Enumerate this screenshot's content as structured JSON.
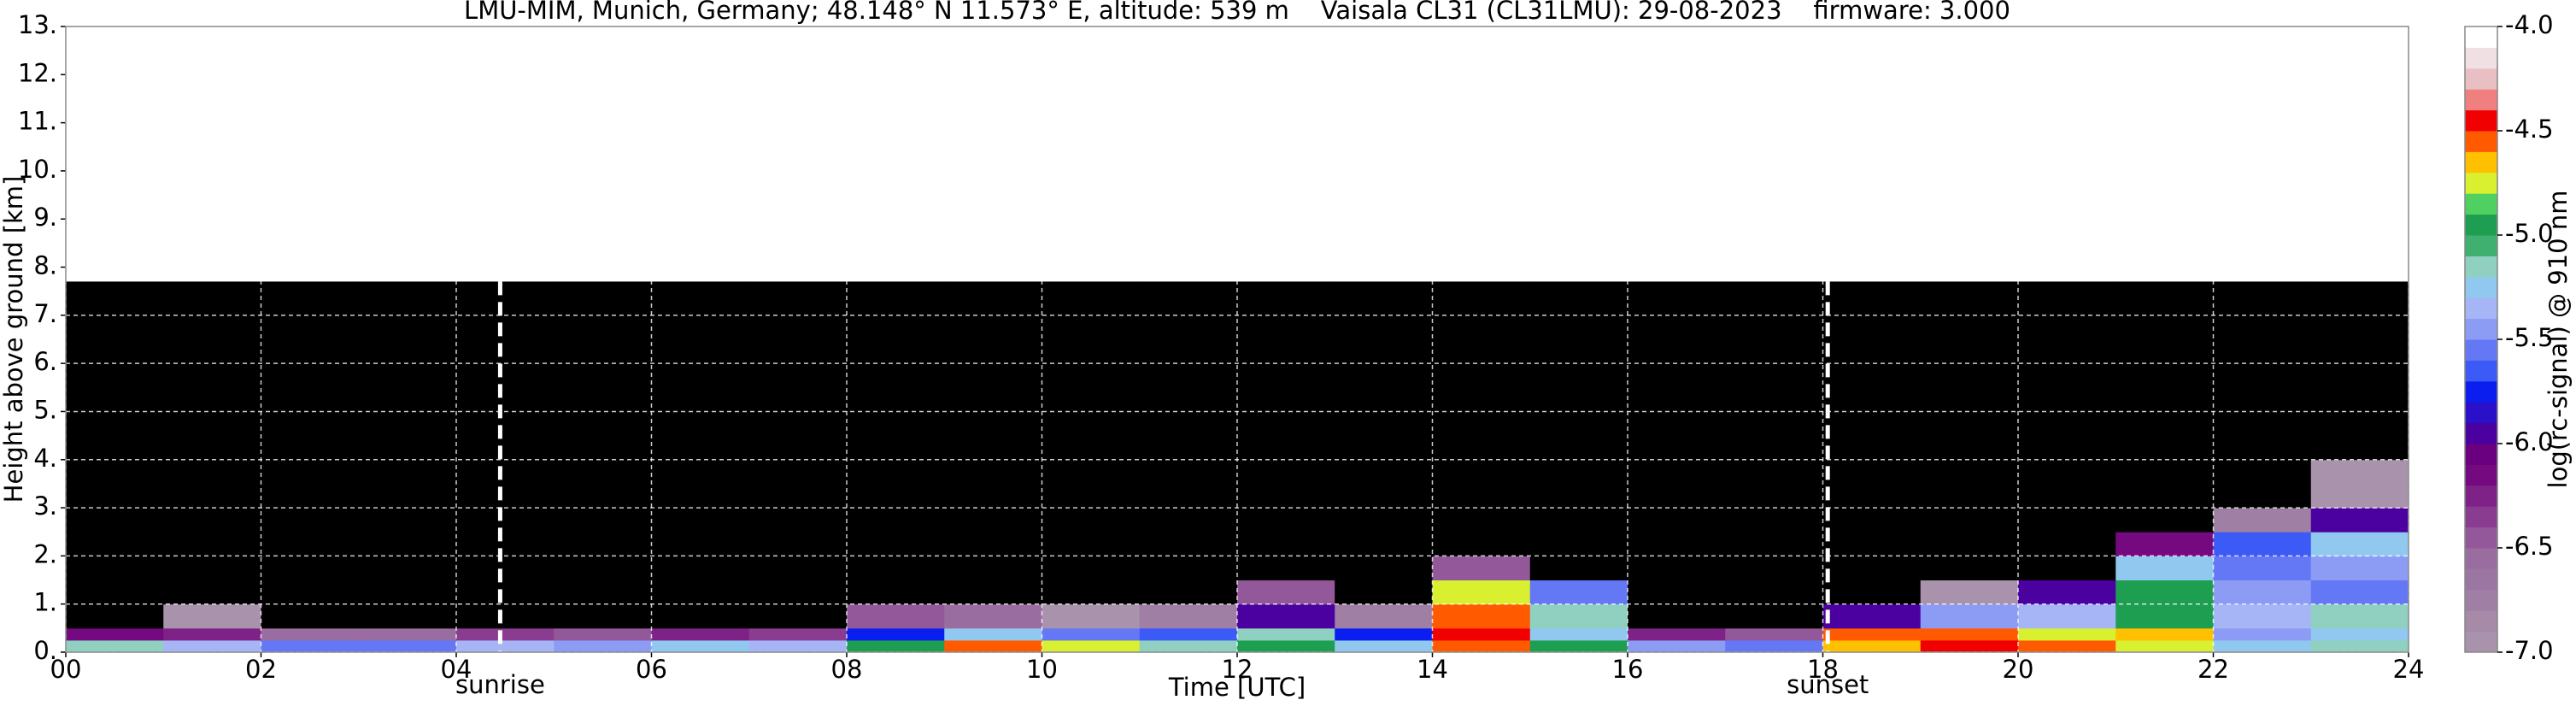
{
  "chart_data": {
    "type": "heatmap",
    "title": "LMU-MIM, Munich, Germany; 48.148° N 11.573° E, altitude: 539 m    Vaisala CL31 (CL31LMU): 29-08-2023    firmware: 3.000",
    "xlabel": "Time [UTC]",
    "ylabel": "Height above ground [km]",
    "xlim": [
      0,
      24
    ],
    "ylim": [
      0,
      13
    ],
    "xticks": [
      {
        "value": 0,
        "label": "00"
      },
      {
        "value": 2,
        "label": "02"
      },
      {
        "value": 4,
        "label": "04"
      },
      {
        "value": 6,
        "label": "06"
      },
      {
        "value": 8,
        "label": "08"
      },
      {
        "value": 10,
        "label": "10"
      },
      {
        "value": 12,
        "label": "12"
      },
      {
        "value": 14,
        "label": "14"
      },
      {
        "value": 16,
        "label": "16"
      },
      {
        "value": 18,
        "label": "18"
      },
      {
        "value": 20,
        "label": "20"
      },
      {
        "value": 22,
        "label": "22"
      },
      {
        "value": 24,
        "label": "24"
      }
    ],
    "yticks": [
      {
        "value": 0,
        "label": "0."
      },
      {
        "value": 1,
        "label": "1."
      },
      {
        "value": 2,
        "label": "2."
      },
      {
        "value": 3,
        "label": "3."
      },
      {
        "value": 4,
        "label": "4."
      },
      {
        "value": 5,
        "label": "5."
      },
      {
        "value": 6,
        "label": "6."
      },
      {
        "value": 7,
        "label": "7."
      },
      {
        "value": 8,
        "label": "8."
      },
      {
        "value": 9,
        "label": "9."
      },
      {
        "value": 10,
        "label": "10."
      },
      {
        "value": 11,
        "label": "11."
      },
      {
        "value": 12,
        "label": "12."
      },
      {
        "value": 13,
        "label": "13."
      }
    ],
    "grid": true,
    "x_edges": [
      0,
      1,
      2,
      3,
      4,
      5,
      6,
      7,
      8,
      9,
      10,
      11,
      12,
      13,
      14,
      15,
      16,
      17,
      18,
      19,
      20,
      21,
      22,
      23,
      24
    ],
    "y_edges": [
      0,
      0.25,
      0.5,
      1,
      1.5,
      2,
      2.5,
      3,
      4,
      5,
      6,
      7,
      7.7
    ],
    "z": [
      [
        -5.2,
        -5.4,
        -5.6,
        -5.6,
        -5.4,
        -5.5,
        -5.3,
        -5.4,
        -5.0,
        -4.6,
        -4.8,
        -5.2,
        -5.0,
        -5.3,
        -4.6,
        -5.0,
        -5.5,
        -5.6,
        -4.7,
        -4.5,
        -4.6,
        -4.8,
        -5.3,
        -5.2
      ],
      [
        -6.2,
        -6.3,
        -6.6,
        -6.6,
        -6.4,
        -6.5,
        -6.3,
        -6.4,
        -5.8,
        -5.3,
        -5.6,
        -5.7,
        -5.2,
        -5.8,
        -4.5,
        -5.3,
        -6.3,
        -6.5,
        -4.6,
        -4.6,
        -4.8,
        -4.7,
        -5.5,
        -5.3
      ],
      [
        -7.1,
        -7.0,
        -7.2,
        -7.2,
        -7.1,
        -7.2,
        -7.2,
        -7.2,
        -6.5,
        -6.6,
        -7.0,
        -6.8,
        -6.0,
        -6.8,
        -4.6,
        -5.2,
        -7.1,
        -7.2,
        -6.0,
        -5.5,
        -5.4,
        -5.0,
        -5.4,
        -5.2
      ],
      [
        -7.2,
        -7.2,
        -7.2,
        -7.2,
        -7.2,
        -7.2,
        -7.2,
        -7.2,
        -7.1,
        -7.2,
        -7.2,
        -7.1,
        -6.5,
        -7.2,
        -4.8,
        -5.6,
        -7.2,
        -7.2,
        -7.1,
        -7.0,
        -6.0,
        -5.0,
        -5.5,
        -5.6
      ],
      [
        -7.3,
        -7.3,
        -7.3,
        -7.3,
        -7.3,
        -7.3,
        -7.3,
        -7.3,
        -7.3,
        -7.3,
        -7.3,
        -7.3,
        -7.3,
        -7.3,
        -6.5,
        -7.3,
        -7.3,
        -7.3,
        -7.3,
        -7.3,
        -7.3,
        -5.3,
        -5.6,
        -5.5
      ],
      [
        -7.3,
        -7.3,
        -7.3,
        -7.3,
        -7.3,
        -7.3,
        -7.3,
        -7.3,
        -7.3,
        -7.3,
        -7.3,
        -7.3,
        -7.3,
        -7.3,
        -7.3,
        -7.3,
        -7.3,
        -7.3,
        -7.3,
        -7.3,
        -7.3,
        -6.2,
        -5.7,
        -5.3
      ],
      [
        -7.3,
        -7.3,
        -7.3,
        -7.3,
        -7.3,
        -7.3,
        -7.3,
        -7.3,
        -7.3,
        -7.3,
        -7.3,
        -7.3,
        -7.3,
        -7.3,
        -7.3,
        -7.3,
        -7.3,
        -7.3,
        -7.3,
        -7.3,
        -7.3,
        -7.3,
        -6.8,
        -6.0
      ],
      [
        -7.4,
        -7.4,
        -7.4,
        -7.4,
        -7.4,
        -7.4,
        -7.4,
        -7.4,
        -7.4,
        -7.4,
        -7.4,
        -7.4,
        -7.4,
        -7.4,
        -7.4,
        -7.4,
        -7.4,
        -7.4,
        -7.4,
        -7.4,
        -7.4,
        -7.4,
        -7.4,
        -7.0
      ],
      [
        -7.3,
        -7.3,
        -7.3,
        -7.3,
        -7.3,
        -7.3,
        -7.3,
        -7.3,
        -7.3,
        -7.3,
        -7.3,
        -7.3,
        -7.3,
        -7.3,
        -7.3,
        -7.3,
        -7.3,
        -7.3,
        -7.3,
        -7.3,
        -7.3,
        -7.3,
        -7.3,
        -7.3
      ],
      [
        -7.2,
        -7.2,
        -7.2,
        -7.2,
        -7.2,
        -7.2,
        -7.2,
        -7.2,
        -7.2,
        -7.2,
        -7.2,
        -7.2,
        -7.2,
        -7.2,
        -7.2,
        -7.2,
        -7.2,
        -7.2,
        -7.2,
        -7.2,
        -7.2,
        -7.2,
        -7.2,
        -7.2
      ],
      [
        -7.1,
        -7.1,
        -7.1,
        -7.1,
        -7.1,
        -7.1,
        -7.1,
        -7.1,
        -7.1,
        -7.1,
        -7.1,
        -7.1,
        -7.1,
        -7.1,
        -7.1,
        -7.1,
        -7.1,
        -7.1,
        -7.1,
        -7.1,
        -7.1,
        -7.1,
        -7.1,
        -7.1
      ],
      [
        -7.05,
        -7.05,
        -7.05,
        -7.05,
        -7.05,
        -7.05,
        -7.05,
        -7.05,
        -7.05,
        -7.05,
        -7.05,
        -7.05,
        -7.05,
        -7.05,
        -7.05,
        -7.05,
        -7.05,
        -7.05,
        -7.05,
        -7.05,
        -7.05,
        -7.05,
        -7.05,
        -7.05
      ]
    ],
    "annotations": [
      {
        "text": "sunrise",
        "x": 4.45
      },
      {
        "text": "sunset",
        "x": 18.05
      }
    ],
    "colorbar": {
      "label": "log(rc-signal) @ 910 nm",
      "lim": [
        -7,
        -4
      ],
      "ticks": [
        {
          "value": -4,
          "label": "-4.0"
        },
        -4.5,
        {
          "value": -5,
          "label": "-5.0"
        },
        -5.5,
        {
          "value": -6,
          "label": "-6.0"
        },
        -6.5,
        {
          "value": -7,
          "label": "-7.0"
        }
      ],
      "levels": [
        -7,
        -6.9,
        -6.8,
        -6.7,
        -6.6,
        -6.5,
        -6.4,
        -6.3,
        -6.2,
        -6.1,
        -6,
        -5.9,
        -5.8,
        -5.7,
        -5.6,
        -5.5,
        -5.4,
        -5.3,
        -5.2,
        -5.1,
        -5,
        -4.9,
        -4.8,
        -4.7,
        -4.6,
        -4.5,
        -4.4,
        -4.3,
        -4.2,
        -4.1,
        -4
      ],
      "colors": [
        "#a992ab",
        "#a68aa8",
        "#a07fa4",
        "#9c76a2",
        "#9a6da0",
        "#93589a",
        "#8a3d90",
        "#7f2288",
        "#750a80",
        "#6a0080",
        "#4b00a0",
        "#2a10c8",
        "#0a1ef0",
        "#3c5af5",
        "#6478f5",
        "#8c9cf5",
        "#a5b5f5",
        "#90c8f0",
        "#8fd0c0",
        "#40b070",
        "#1e9e50",
        "#50d060",
        "#d8f030",
        "#ffc000",
        "#ff5a00",
        "#f00000",
        "#f08080",
        "#e8c0c4",
        "#f0e0e4",
        "#ffffff"
      ],
      "under_color": "#000000"
    }
  }
}
